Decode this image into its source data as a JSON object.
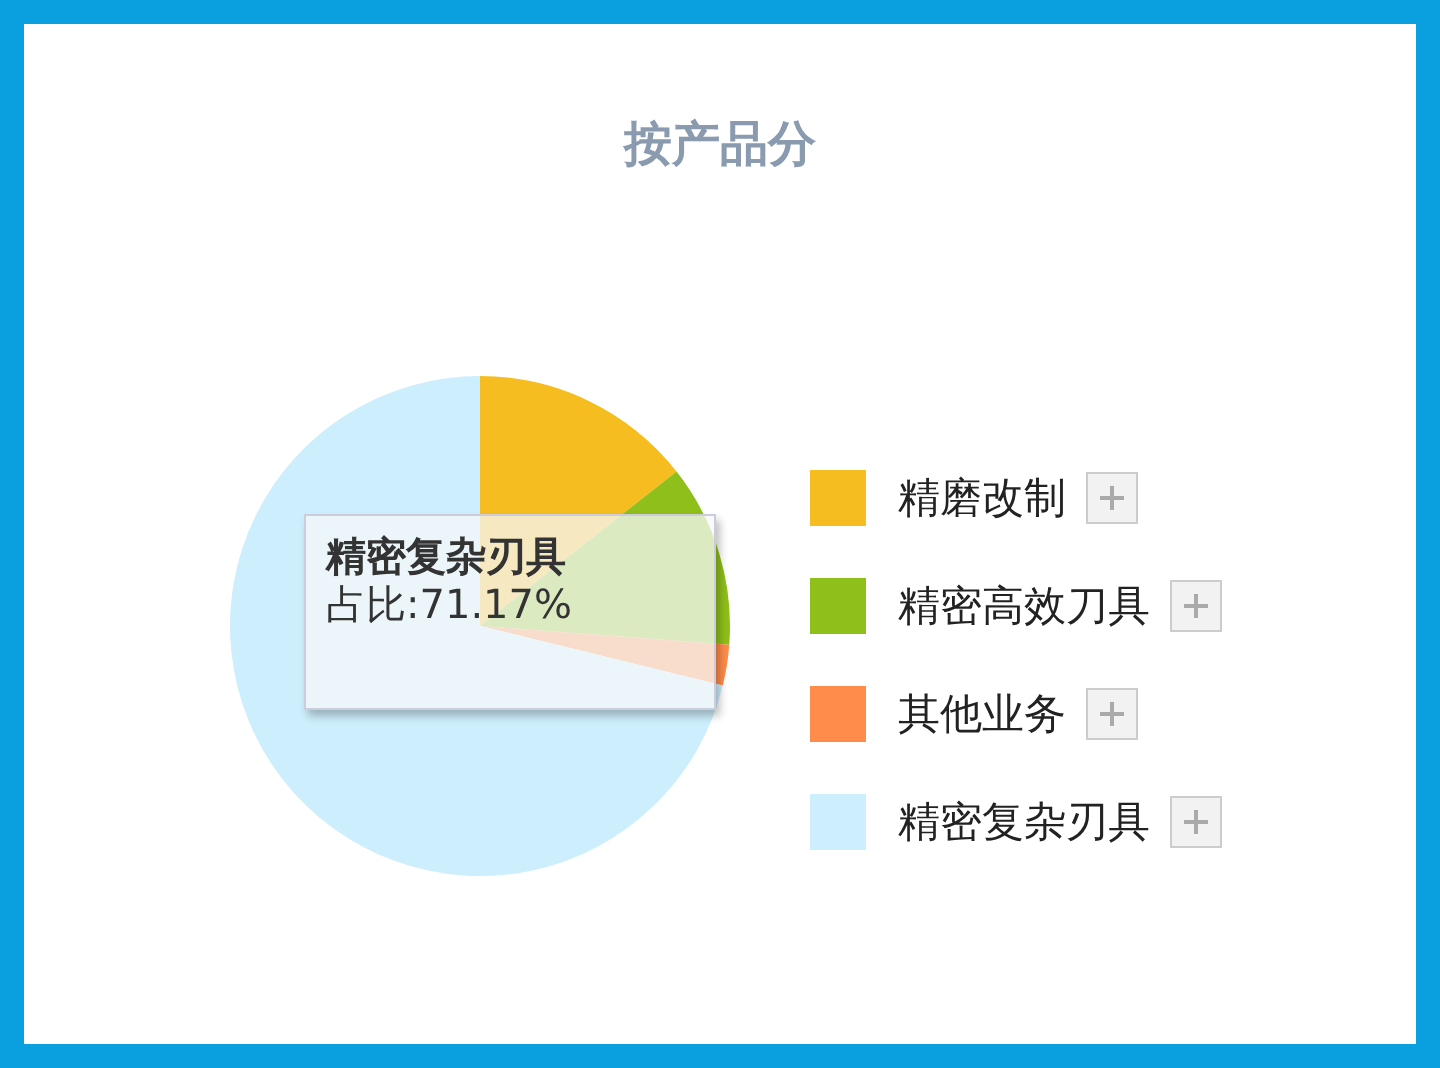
{
  "chart_data": {
    "type": "pie",
    "title": "按产品分",
    "categories": [
      "精磨改制",
      "精密高效刀具",
      "其他业务",
      "精密复杂刃具"
    ],
    "values": [
      14.4,
      11.8,
      2.63,
      71.17
    ],
    "colors": [
      "#f5bd1f",
      "#8fbf1a",
      "#ff8c4a",
      "#cdeefc"
    ],
    "legend": "right",
    "annotations": [
      "精密复杂刃具",
      "占比:71.17%"
    ]
  }
}
